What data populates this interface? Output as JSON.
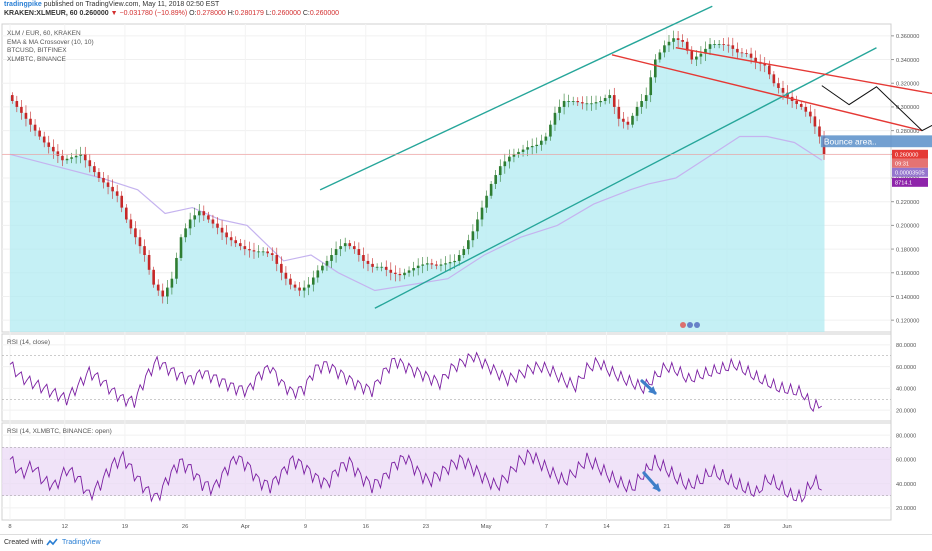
{
  "header": {
    "brand": "tradingpike",
    "published": "published on TradingView.com, May 11, 2018 02:50 EST",
    "symbol": "KRAKEN:XLMEUR, 60",
    "last": "0.260000",
    "change": "▼ −0.031780 (−10.89%)",
    "o_label": "O:",
    "o_val": "0.278000",
    "h_label": "H:",
    "h_val": "0.280179",
    "l_label": "L:",
    "l_val": "0.260000",
    "c_label": "C:",
    "c_val": "0.260000"
  },
  "legend": {
    "line1": "XLM / EUR, 60, KRAKEN",
    "line2": "EMA & MA Crossover (10, 10)",
    "line3": "BTCUSD, BITFINEX",
    "line4": "XLMBTC, BINANCE"
  },
  "panes": {
    "rsi1_label": "RSI (14, close)",
    "rsi2_label": "RSI (14, XLMBTC, BINANCE: open)"
  },
  "annotation": {
    "bounce_label": "Bounce area.."
  },
  "price_tags": {
    "last": "0.260000",
    "timer": "09:31",
    "btc": "0.00003505",
    "xlmbtc": "8714.1"
  },
  "footer": {
    "created": "Created with",
    "brand": "TradingView"
  },
  "colors": {
    "up": "#2e7d32",
    "down": "#c62828",
    "area": "#b2ebf2",
    "overlay": "#c5b3ef",
    "rsi": "#7b1fa2",
    "channel": "#26a69a",
    "resistance": "#e53935",
    "bounce_box": "#5b8fc9",
    "arrow_blue": "#3f7fc9"
  },
  "chart_data": [
    {
      "type": "candlestick",
      "title": "XLM / EUR, 60, KRAKEN",
      "y_ticks": [
        "0.120000",
        "0.140000",
        "0.160000",
        "0.180000",
        "0.200000",
        "0.220000",
        "0.240000",
        "0.260000",
        "0.280000",
        "0.300000",
        "0.320000",
        "0.340000",
        "0.360000"
      ],
      "x_ticks": [
        "8",
        "12",
        "19",
        "26",
        "Apr",
        "9",
        "16",
        "23",
        "May",
        "7",
        "14",
        "21",
        "28",
        "Jun"
      ],
      "ylim": [
        0.11,
        0.37
      ],
      "x_index_range": [
        0,
        91
      ],
      "price_points": [
        [
          0,
          0.31
        ],
        [
          2,
          0.29
        ],
        [
          4,
          0.27
        ],
        [
          6,
          0.255
        ],
        [
          8,
          0.26
        ],
        [
          10,
          0.24
        ],
        [
          12,
          0.225
        ],
        [
          13,
          0.205
        ],
        [
          14,
          0.19
        ],
        [
          15,
          0.175
        ],
        [
          16,
          0.15
        ],
        [
          17,
          0.14
        ],
        [
          18,
          0.155
        ],
        [
          19,
          0.19
        ],
        [
          20,
          0.205
        ],
        [
          21,
          0.212
        ],
        [
          22,
          0.205
        ],
        [
          23,
          0.198
        ],
        [
          24,
          0.19
        ],
        [
          25,
          0.185
        ],
        [
          26,
          0.18
        ],
        [
          27,
          0.178
        ],
        [
          28,
          0.178
        ],
        [
          29,
          0.175
        ],
        [
          30,
          0.16
        ],
        [
          31,
          0.15
        ],
        [
          32,
          0.145
        ],
        [
          33,
          0.15
        ],
        [
          34,
          0.162
        ],
        [
          35,
          0.17
        ],
        [
          36,
          0.18
        ],
        [
          37,
          0.185
        ],
        [
          38,
          0.18
        ],
        [
          39,
          0.17
        ],
        [
          40,
          0.165
        ],
        [
          41,
          0.165
        ],
        [
          42,
          0.16
        ],
        [
          43,
          0.158
        ],
        [
          44,
          0.162
        ],
        [
          45,
          0.166
        ],
        [
          46,
          0.168
        ],
        [
          47,
          0.166
        ],
        [
          48,
          0.168
        ],
        [
          49,
          0.17
        ],
        [
          50,
          0.18
        ],
        [
          51,
          0.195
        ],
        [
          52,
          0.215
        ],
        [
          53,
          0.235
        ],
        [
          54,
          0.25
        ],
        [
          55,
          0.258
        ],
        [
          56,
          0.262
        ],
        [
          57,
          0.266
        ],
        [
          58,
          0.268
        ],
        [
          59,
          0.275
        ],
        [
          60,
          0.295
        ],
        [
          61,
          0.305
        ],
        [
          62,
          0.305
        ],
        [
          63,
          0.303
        ],
        [
          64,
          0.303
        ],
        [
          65,
          0.305
        ],
        [
          66,
          0.31
        ],
        [
          67,
          0.29
        ],
        [
          68,
          0.285
        ],
        [
          69,
          0.3
        ],
        [
          70,
          0.31
        ],
        [
          71,
          0.34
        ],
        [
          72,
          0.352
        ],
        [
          73,
          0.358
        ],
        [
          74,
          0.355
        ],
        [
          75,
          0.34
        ],
        [
          76,
          0.345
        ],
        [
          77,
          0.353
        ],
        [
          78,
          0.353
        ],
        [
          79,
          0.352
        ],
        [
          80,
          0.346
        ],
        [
          81,
          0.345
        ],
        [
          82,
          0.338
        ],
        [
          83,
          0.335
        ],
        [
          84,
          0.32
        ],
        [
          85,
          0.312
        ],
        [
          86,
          0.305
        ],
        [
          87,
          0.3
        ],
        [
          88,
          0.292
        ],
        [
          89,
          0.275
        ],
        [
          89.3,
          0.26
        ]
      ],
      "btcusd_overlay_points": [
        [
          0,
          0.26
        ],
        [
          5,
          0.25
        ],
        [
          10,
          0.24
        ],
        [
          14,
          0.23
        ],
        [
          17,
          0.21
        ],
        [
          20,
          0.215
        ],
        [
          23,
          0.205
        ],
        [
          26,
          0.2
        ],
        [
          30,
          0.17
        ],
        [
          33,
          0.175
        ],
        [
          36,
          0.16
        ],
        [
          40,
          0.145
        ],
        [
          44,
          0.15
        ],
        [
          48,
          0.155
        ],
        [
          52,
          0.175
        ],
        [
          56,
          0.19
        ],
        [
          60,
          0.2
        ],
        [
          64,
          0.218
        ],
        [
          68,
          0.23
        ],
        [
          70,
          0.235
        ],
        [
          73,
          0.24
        ],
        [
          76,
          0.255
        ],
        [
          80,
          0.275
        ],
        [
          83,
          0.275
        ],
        [
          86,
          0.27
        ],
        [
          89,
          0.255
        ]
      ],
      "channel_lower": [
        [
          40,
          0.13
        ],
        [
          95,
          0.35
        ]
      ],
      "channel_upper": [
        [
          34,
          0.23
        ],
        [
          77,
          0.385
        ]
      ],
      "resistance_upper": [
        [
          73,
          0.35
        ],
        [
          113,
          0.295
        ]
      ],
      "resistance_lower": [
        [
          66,
          0.344
        ],
        [
          100,
          0.28
        ]
      ],
      "projection_path": [
        [
          89,
          0.318
        ],
        [
          92,
          0.302
        ],
        [
          95,
          0.317
        ],
        [
          100,
          0.28
        ],
        [
          108,
          0.312
        ]
      ],
      "bounce_zone": [
        0.266,
        0.276
      ],
      "last_price": 0.26
    },
    {
      "type": "line",
      "title": "RSI (14, close)",
      "y_ticks": [
        "20.0000",
        "40.0000",
        "60.0000",
        "80.0000"
      ],
      "ylim": [
        10,
        90
      ],
      "bands": [
        30,
        70
      ],
      "values": [
        62,
        50,
        45,
        40,
        35,
        30,
        42,
        55,
        48,
        38,
        30,
        28,
        50,
        65,
        58,
        52,
        48,
        55,
        50,
        45,
        40,
        38,
        52,
        60,
        45,
        36,
        40,
        58,
        62,
        55,
        48,
        42,
        38,
        54,
        66,
        60,
        55,
        50,
        45,
        58,
        64,
        70,
        62,
        55,
        48,
        52,
        58,
        60,
        55,
        47,
        42,
        58,
        64,
        56,
        50,
        45,
        40,
        50,
        60,
        56,
        48,
        52,
        55,
        58,
        62,
        56,
        50,
        45,
        40,
        38,
        36,
        22,
        28
      ]
    },
    {
      "type": "line",
      "title": "RSI (14, XLMBTC, BINANCE: open)",
      "y_ticks": [
        "20.0000",
        "40.0000",
        "60.0000",
        "80.0000"
      ],
      "ylim": [
        10,
        90
      ],
      "bands": [
        30,
        70
      ],
      "values": [
        60,
        48,
        55,
        42,
        38,
        52,
        45,
        30,
        40,
        55,
        62,
        48,
        35,
        28,
        45,
        58,
        52,
        40,
        36,
        50,
        62,
        55,
        42,
        38,
        48,
        60,
        54,
        45,
        40,
        52,
        58,
        46,
        38,
        44,
        56,
        62,
        50,
        42,
        48,
        55,
        60,
        52,
        44,
        38,
        46,
        58,
        64,
        56,
        48,
        42,
        50,
        60,
        54,
        46,
        40,
        36,
        48,
        58,
        52,
        44,
        38,
        42,
        50,
        46,
        40,
        36,
        32,
        44,
        38,
        30,
        28,
        42,
        36
      ]
    }
  ]
}
